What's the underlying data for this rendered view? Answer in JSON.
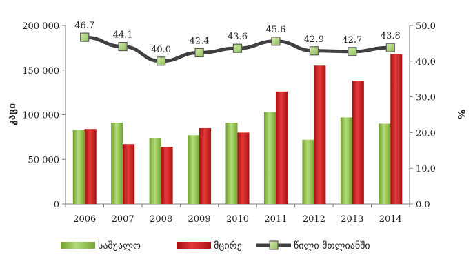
{
  "chart_data": {
    "type": "bar",
    "categories": [
      "2006",
      "2007",
      "2008",
      "2009",
      "2010",
      "2011",
      "2012",
      "2013",
      "2014"
    ],
    "series": [
      {
        "name": "საშუალო",
        "kind": "bar",
        "axis": "left",
        "color": "#7fb43a",
        "values": [
          83000,
          91000,
          74000,
          77000,
          91000,
          103000,
          72000,
          97000,
          90000
        ]
      },
      {
        "name": "მცირე",
        "kind": "bar",
        "axis": "left",
        "color": "#c81d1d",
        "values": [
          84000,
          67000,
          64000,
          85000,
          80000,
          126000,
          155000,
          138000,
          168000
        ]
      },
      {
        "name": "წილი მთლიანში",
        "kind": "line",
        "axis": "right",
        "color": "#404040",
        "marker_color": "#a9cf7a",
        "values": [
          46.7,
          44.1,
          40.0,
          42.4,
          43.6,
          45.6,
          42.9,
          42.7,
          43.8
        ],
        "labels": [
          "46.7",
          "44.1",
          "40.0",
          "42.4",
          "43.6",
          "45.6",
          "42.9",
          "42.7",
          "43.8"
        ]
      }
    ],
    "ylabel_left": "კაცი",
    "ylabel_right": "%",
    "ylim_left": [
      0,
      200000
    ],
    "ylim_right": [
      0,
      50
    ],
    "left_ticks": [
      {
        "value": 0,
        "label": "0"
      },
      {
        "value": 50000,
        "label": "50 000"
      },
      {
        "value": 100000,
        "label": "100 000"
      },
      {
        "value": 150000,
        "label": "150 000"
      },
      {
        "value": 200000,
        "label": "200 000"
      }
    ],
    "right_ticks": [
      {
        "value": 0,
        "label": "0.0"
      },
      {
        "value": 10,
        "label": "10.0"
      },
      {
        "value": 20,
        "label": "20.0"
      },
      {
        "value": 30,
        "label": "30.0"
      },
      {
        "value": 40,
        "label": "40.0"
      },
      {
        "value": 50,
        "label": "50.0"
      }
    ],
    "grid": false,
    "legend_position": "bottom"
  }
}
